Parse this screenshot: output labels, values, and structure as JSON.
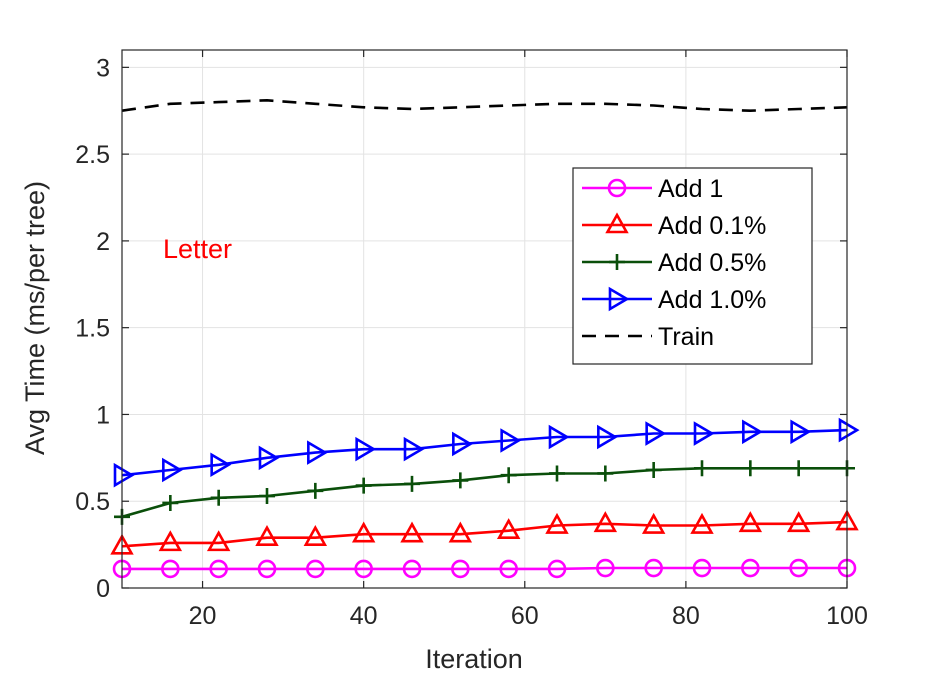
{
  "chart_data": {
    "type": "line",
    "xlabel": "Iteration",
    "ylabel": "Avg Time (ms/per tree)",
    "annotation": "Letter",
    "xlim": [
      10,
      100
    ],
    "ylim": [
      0,
      3.1
    ],
    "xticks": [
      20,
      40,
      60,
      80,
      100
    ],
    "yticks": [
      0,
      0.5,
      1,
      1.5,
      2,
      2.5,
      3
    ],
    "xtick_labels": [
      "20",
      "40",
      "60",
      "80",
      "100"
    ],
    "ytick_labels": [
      "0",
      "0.5",
      "1",
      "1.5",
      "2",
      "2.5",
      "3"
    ],
    "grid": true,
    "legend_position": "top-right",
    "x": [
      10,
      16,
      22,
      28,
      34,
      40,
      46,
      52,
      58,
      64,
      70,
      76,
      82,
      88,
      94,
      100
    ],
    "series": [
      {
        "name": "Add 1",
        "color": "#ff00ff",
        "marker": "circle",
        "dash": "solid",
        "values": [
          0.11,
          0.11,
          0.11,
          0.11,
          0.11,
          0.11,
          0.11,
          0.11,
          0.11,
          0.11,
          0.115,
          0.115,
          0.115,
          0.115,
          0.115,
          0.115
        ]
      },
      {
        "name": "Add 0.1%",
        "color": "#ff0000",
        "marker": "triangle-up",
        "dash": "solid",
        "values": [
          0.24,
          0.26,
          0.26,
          0.29,
          0.29,
          0.31,
          0.31,
          0.31,
          0.33,
          0.36,
          0.37,
          0.36,
          0.36,
          0.37,
          0.37,
          0.38
        ]
      },
      {
        "name": "Add 0.5%",
        "color": "#0a4f0a",
        "marker": "plus",
        "dash": "solid",
        "values": [
          0.41,
          0.49,
          0.52,
          0.53,
          0.56,
          0.59,
          0.6,
          0.62,
          0.65,
          0.66,
          0.66,
          0.68,
          0.69,
          0.69,
          0.69,
          0.69
        ]
      },
      {
        "name": "Add 1.0%",
        "color": "#0000ff",
        "marker": "triangle-right",
        "dash": "solid",
        "values": [
          0.65,
          0.68,
          0.71,
          0.75,
          0.78,
          0.8,
          0.8,
          0.83,
          0.85,
          0.87,
          0.87,
          0.89,
          0.89,
          0.9,
          0.9,
          0.91
        ]
      },
      {
        "name": "Train",
        "color": "#000000",
        "marker": "none",
        "dash": "dashed",
        "values": [
          2.75,
          2.79,
          2.8,
          2.81,
          2.79,
          2.77,
          2.76,
          2.77,
          2.78,
          2.79,
          2.79,
          2.78,
          2.76,
          2.75,
          2.76,
          2.77
        ]
      }
    ]
  }
}
